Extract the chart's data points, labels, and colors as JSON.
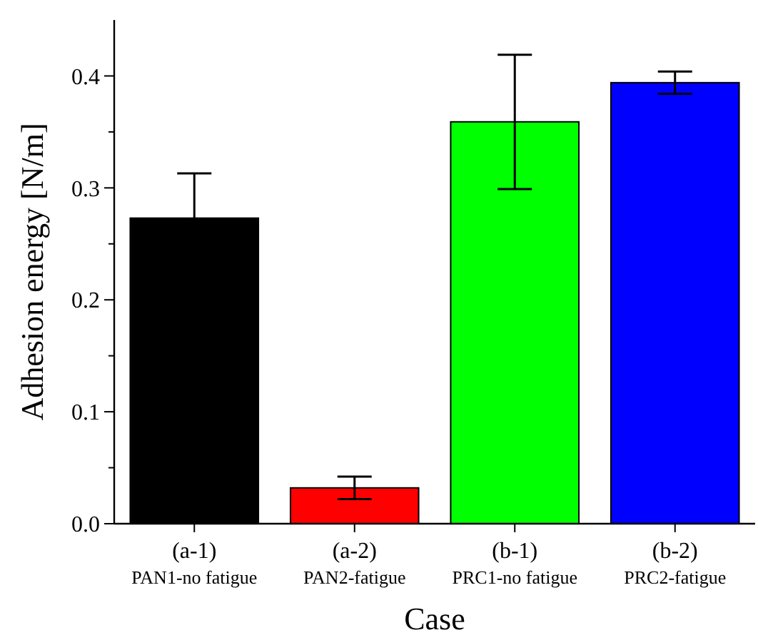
{
  "chart_data": {
    "type": "bar",
    "xlabel": "Case",
    "ylabel": "Adhesion energy [N/m]",
    "categories": [
      "(a-1)\nPAN1-no fatigue",
      "(a-2)\nPAN2-fatigue",
      "(b-1)\nPRC1-no fatigue",
      "(b-2)\nPRC2-fatigue"
    ],
    "values": [
      0.273,
      0.032,
      0.359,
      0.394
    ],
    "colors": [
      "#000000",
      "#ff0000",
      "#00ff00",
      "#0000ff"
    ],
    "errors": [
      0.04,
      0.01,
      0.06,
      0.01
    ],
    "ylim": [
      0,
      0.45
    ],
    "yticks": [
      {
        "value": 0,
        "label": "0.0"
      },
      {
        "value": 0.05,
        "label": null
      },
      {
        "value": 0.1,
        "label": "0.1"
      },
      {
        "value": 0.15,
        "label": null
      },
      {
        "value": 0.2,
        "label": "0.2"
      },
      {
        "value": 0.25,
        "label": null
      },
      {
        "value": 0.3,
        "label": "0.3"
      },
      {
        "value": 0.35,
        "label": null
      },
      {
        "value": 0.4,
        "label": "0.4"
      }
    ],
    "grid": false
  }
}
